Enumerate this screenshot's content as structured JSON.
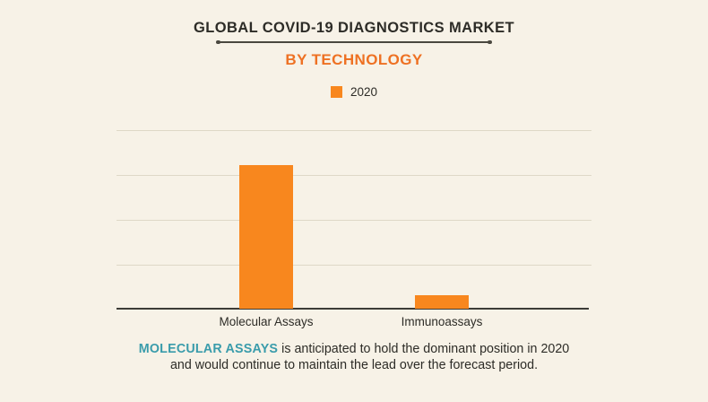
{
  "header": {
    "title": "GLOBAL COVID-19 DIAGNOSTICS MARKET",
    "subtitle": "BY TECHNOLOGY"
  },
  "chart_data": {
    "type": "bar",
    "title": "GLOBAL COVID-19 DIAGNOSTICS MARKET",
    "subtitle": "BY TECHNOLOGY",
    "categories": [
      "Molecular Assays",
      "Immunoassays"
    ],
    "series": [
      {
        "name": "2020",
        "values": [
          3.2,
          0.3
        ]
      }
    ],
    "legend": [
      "2020"
    ],
    "legend_position": "top-center",
    "xlabel": "",
    "ylabel": "",
    "ylim": [
      0,
      4
    ],
    "y_tick_labels_visible": false,
    "grid": true,
    "gridline_values": [
      1,
      2,
      3,
      4
    ],
    "value_note": "y-axis has no numeric labels; values estimated in gridline units from pixel heights"
  },
  "footnote": {
    "highlight": "MOLECULAR ASSAYS",
    "line1_rest": " is anticipated to hold the dominant position in 2020",
    "line2": "and would continue to maintain the lead over the forecast period."
  },
  "colors": {
    "background": "#f7f2e7",
    "bar_orange": "#f8871e",
    "subtitle_orange": "#ee7123",
    "highlight_teal": "#3a9cab",
    "text_dark": "#2d2c27",
    "gridline": "#ded8c7",
    "axis": "#3d3c37",
    "divider": "#4a483f"
  }
}
